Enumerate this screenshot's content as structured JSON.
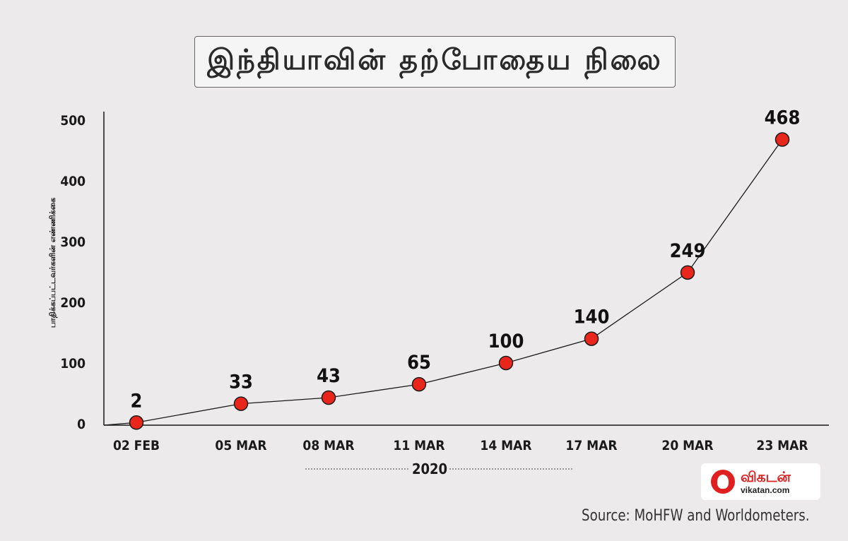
{
  "chart_data": {
    "type": "line",
    "title": "இந்தியாவின் தற்போதைய நிலை",
    "ylabel": "பாதிக்கப்பட்டவர்களின் எண்ணிக்கை",
    "xlabel": "2020",
    "categories": [
      "02 FEB",
      "05 MAR",
      "08 MAR",
      "11 MAR",
      "14 MAR",
      "17 MAR",
      "20 MAR",
      "23 MAR"
    ],
    "values": [
      2,
      33,
      43,
      65,
      100,
      140,
      249,
      468
    ],
    "ylim": [
      0,
      500
    ],
    "yticks": [
      0,
      100,
      200,
      300,
      400,
      500
    ],
    "grid": false,
    "colors": {
      "marker": "#E8261B",
      "line": "#1a1a1a"
    }
  },
  "branding": {
    "logo_name": "விகடன்",
    "logo_url": "vikatan.com"
  },
  "source": "Source: MoHFW and Worldometers."
}
